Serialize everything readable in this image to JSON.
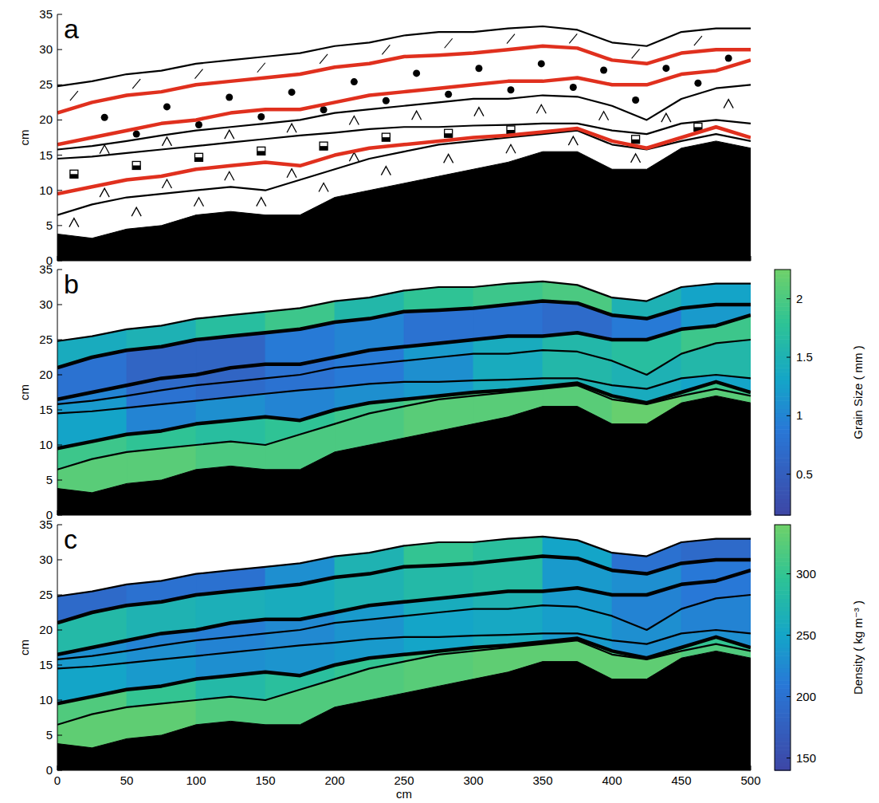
{
  "chart_data": [
    {
      "type": "stratigraphy",
      "title": "a",
      "ylabel": "cm",
      "xlim": [
        0,
        500
      ],
      "xticks": [
        0,
        50,
        100,
        150,
        200,
        250,
        300,
        350,
        400,
        450,
        500
      ],
      "ylim": [
        0,
        35
      ],
      "yticks": [
        0,
        5,
        10,
        15,
        20,
        25,
        30,
        35
      ],
      "tick_labels": "y",
      "x": [
        0,
        25,
        50,
        75,
        100,
        125,
        150,
        175,
        200,
        225,
        250,
        275,
        300,
        325,
        350,
        375,
        400,
        425,
        450,
        475,
        500
      ],
      "series": [
        {
          "type": "area",
          "color": "#000000",
          "values": [
            3.8,
            3.2,
            4.5,
            5,
            6.5,
            7,
            6.5,
            6.5,
            9,
            10,
            11,
            12,
            13,
            14,
            15.5,
            15.5,
            13,
            13,
            16,
            17,
            16
          ]
        },
        {
          "type": "line",
          "color": "#000000",
          "line_style": "thin",
          "values": [
            6.5,
            8,
            9,
            9.5,
            10,
            10.5,
            10,
            11.5,
            13,
            14.5,
            15.5,
            16.5,
            17,
            17.5,
            18,
            18.5,
            16.5,
            15.8,
            17,
            18,
            17
          ]
        },
        {
          "type": "line",
          "color": "#e0301e",
          "line_style": "thick",
          "values": [
            9.5,
            10.5,
            11.5,
            12,
            13,
            13.5,
            14,
            13.5,
            15,
            16,
            16.5,
            17,
            17.5,
            17.8,
            18.3,
            18.8,
            17,
            16,
            17.5,
            19,
            17.5
          ]
        },
        {
          "type": "line",
          "color": "#000000",
          "line_style": "thin",
          "values": [
            14.5,
            14.8,
            15.3,
            15.8,
            16.3,
            16.8,
            17.3,
            17.8,
            18.2,
            18.7,
            19,
            19,
            19.2,
            19.3,
            19.5,
            19.5,
            18.5,
            18,
            19.5,
            20,
            19.5
          ]
        },
        {
          "type": "line",
          "color": "#000000",
          "line_style": "thin",
          "values": [
            15.8,
            16.3,
            17,
            17.8,
            18.5,
            19,
            19.5,
            20,
            21,
            21.5,
            22,
            22.5,
            23,
            23,
            23.5,
            23.3,
            22,
            20,
            23,
            24.5,
            25
          ]
        },
        {
          "type": "line",
          "color": "#e0301e",
          "line_style": "thick",
          "values": [
            16.5,
            17.5,
            18.5,
            19.5,
            20,
            21,
            21.5,
            21.5,
            22.5,
            23.5,
            24,
            24.5,
            25,
            25.5,
            25.5,
            26,
            25,
            25,
            26.5,
            27,
            28.5
          ]
        },
        {
          "type": "line",
          "color": "#e0301e",
          "line_style": "thick",
          "values": [
            21,
            22.5,
            23.5,
            24,
            25,
            25.5,
            26,
            26.5,
            27.5,
            28,
            29,
            29.2,
            29.5,
            30,
            30.5,
            30.2,
            28.5,
            28,
            29.5,
            30,
            30
          ]
        },
        {
          "type": "line",
          "color": "#000000",
          "line_style": "thin",
          "values": [
            24.8,
            25.5,
            26.5,
            27,
            28,
            28.5,
            29,
            29.5,
            30.5,
            31,
            32,
            32.5,
            32.5,
            33,
            33.3,
            32.8,
            31,
            30.5,
            32.5,
            33,
            33
          ]
        }
      ],
      "layers": [
        {
          "marker": "caret"
        },
        {
          "marker": "caret"
        },
        {
          "marker": "square"
        },
        {
          "marker": "caret"
        },
        {
          "marker": "circle"
        },
        {
          "marker": "circle"
        },
        {
          "marker": "slash"
        }
      ]
    },
    {
      "type": "stratigraphy",
      "title": "b",
      "ylabel": "cm",
      "xlim": [
        0,
        500
      ],
      "xticks": [
        0,
        50,
        100,
        150,
        200,
        250,
        300,
        350,
        400,
        450,
        500
      ],
      "ylim": [
        0,
        35
      ],
      "yticks": [
        0,
        5,
        10,
        15,
        20,
        25,
        30,
        35
      ],
      "tick_labels": "y",
      "x": [
        0,
        25,
        50,
        75,
        100,
        125,
        150,
        175,
        200,
        225,
        250,
        275,
        300,
        325,
        350,
        375,
        400,
        425,
        450,
        475,
        500
      ],
      "series": [
        {
          "type": "area",
          "color": "#000000",
          "values": [
            3.8,
            3.2,
            4.5,
            5,
            6.5,
            7,
            6.5,
            6.5,
            9,
            10,
            11,
            12,
            13,
            14,
            15.5,
            15.5,
            13,
            13,
            16,
            17,
            16
          ]
        },
        {
          "type": "line",
          "color": "#000000",
          "line_style": "thin",
          "values": [
            6.5,
            8,
            9,
            9.5,
            10,
            10.5,
            10,
            11.5,
            13,
            14.5,
            15.5,
            16.5,
            17,
            17.5,
            18,
            18.5,
            16.5,
            15.8,
            17,
            18,
            17
          ]
        },
        {
          "type": "line",
          "color": "#000000",
          "line_style": "thick",
          "values": [
            9.5,
            10.5,
            11.5,
            12,
            13,
            13.5,
            14,
            13.5,
            15,
            16,
            16.5,
            17,
            17.5,
            17.8,
            18.3,
            18.8,
            17,
            16,
            17.5,
            19,
            17.5
          ]
        },
        {
          "type": "line",
          "color": "#000000",
          "line_style": "thin",
          "values": [
            14.5,
            14.8,
            15.3,
            15.8,
            16.3,
            16.8,
            17.3,
            17.8,
            18.2,
            18.7,
            19,
            19,
            19.2,
            19.3,
            19.5,
            19.5,
            18.5,
            18,
            19.5,
            20,
            19.5
          ]
        },
        {
          "type": "line",
          "color": "#000000",
          "line_style": "thin",
          "values": [
            15.8,
            16.3,
            17,
            17.8,
            18.5,
            19,
            19.5,
            20,
            21,
            21.5,
            22,
            22.5,
            23,
            23,
            23.5,
            23.3,
            22,
            20,
            23,
            24.5,
            25
          ]
        },
        {
          "type": "line",
          "color": "#000000",
          "line_style": "thick",
          "values": [
            16.5,
            17.5,
            18.5,
            19.5,
            20,
            21,
            21.5,
            21.5,
            22.5,
            23.5,
            24,
            24.5,
            25,
            25.5,
            25.5,
            26,
            25,
            25,
            26.5,
            27,
            28.5
          ]
        },
        {
          "type": "line",
          "color": "#000000",
          "line_style": "thick",
          "values": [
            21,
            22.5,
            23.5,
            24,
            25,
            25.5,
            26,
            26.5,
            27.5,
            28,
            29,
            29.2,
            29.5,
            30,
            30.5,
            30.2,
            28.5,
            28,
            29.5,
            30,
            30
          ]
        },
        {
          "type": "line",
          "color": "#000000",
          "line_style": "thin",
          "values": [
            24.8,
            25.5,
            26.5,
            27,
            28,
            28.5,
            29,
            29.5,
            30.5,
            31,
            32,
            32.5,
            32.5,
            33,
            33.3,
            32.8,
            31,
            30.5,
            32.5,
            33,
            33
          ]
        }
      ],
      "cells": {
        "x_edges": [
          0,
          50,
          100,
          150,
          200,
          250,
          300,
          350,
          400,
          450,
          500
        ],
        "values": [
          [
            2.1,
            2.1,
            2.0,
            2.0,
            2.0,
            2.1,
            2.1,
            2.1,
            2.2,
            2.1
          ],
          [
            1.9,
            1.8,
            1.7,
            1.8,
            1.9,
            2.0,
            2.0,
            2.0,
            1.9,
            1.9
          ],
          [
            1.3,
            1.0,
            1.1,
            1.0,
            1.1,
            1.2,
            1.4,
            1.5,
            1.4,
            1.3
          ],
          [
            1.2,
            0.8,
            0.7,
            0.8,
            0.9,
            1.1,
            1.4,
            1.6,
            1.5,
            1.6
          ],
          [
            1.0,
            0.7,
            0.6,
            0.8,
            0.9,
            1.2,
            1.4,
            1.6,
            1.7,
            1.9
          ],
          [
            0.8,
            0.6,
            0.6,
            0.9,
            1.0,
            0.8,
            0.8,
            0.7,
            0.9,
            1.2
          ],
          [
            1.4,
            1.5,
            1.7,
            1.9,
            1.6,
            1.8,
            1.9,
            2.0,
            1.5,
            1.3
          ]
        ]
      },
      "colorbar": {
        "label": "Grain Size ( mm )",
        "lim": [
          0.15,
          2.25
        ],
        "ticks": [
          0.5,
          1,
          1.5,
          2
        ]
      }
    },
    {
      "type": "stratigraphy",
      "title": "c",
      "ylabel": "cm",
      "xlabel": "cm",
      "xlim": [
        0,
        500
      ],
      "xticks": [
        0,
        50,
        100,
        150,
        200,
        250,
        300,
        350,
        400,
        450,
        500
      ],
      "ylim": [
        0,
        35
      ],
      "yticks": [
        0,
        5,
        10,
        15,
        20,
        25,
        30,
        35
      ],
      "tick_labels": true,
      "x": [
        0,
        25,
        50,
        75,
        100,
        125,
        150,
        175,
        200,
        225,
        250,
        275,
        300,
        325,
        350,
        375,
        400,
        425,
        450,
        475,
        500
      ],
      "series": [
        {
          "type": "area",
          "color": "#000000",
          "values": [
            3.8,
            3.2,
            4.5,
            5,
            6.5,
            7,
            6.5,
            6.5,
            9,
            10,
            11,
            12,
            13,
            14,
            15.5,
            15.5,
            13,
            13,
            16,
            17,
            16
          ]
        },
        {
          "type": "line",
          "color": "#000000",
          "line_style": "thin",
          "values": [
            6.5,
            8,
            9,
            9.5,
            10,
            10.5,
            10,
            11.5,
            13,
            14.5,
            15.5,
            16.5,
            17,
            17.5,
            18,
            18.5,
            16.5,
            15.8,
            17,
            18,
            17
          ]
        },
        {
          "type": "line",
          "color": "#000000",
          "line_style": "thick",
          "values": [
            9.5,
            10.5,
            11.5,
            12,
            13,
            13.5,
            14,
            13.5,
            15,
            16,
            16.5,
            17,
            17.5,
            17.8,
            18.3,
            18.8,
            17,
            16,
            17.5,
            19,
            17.5
          ]
        },
        {
          "type": "line",
          "color": "#000000",
          "line_style": "thin",
          "values": [
            14.5,
            14.8,
            15.3,
            15.8,
            16.3,
            16.8,
            17.3,
            17.8,
            18.2,
            18.7,
            19,
            19,
            19.2,
            19.3,
            19.5,
            19.5,
            18.5,
            18,
            19.5,
            20,
            19.5
          ]
        },
        {
          "type": "line",
          "color": "#000000",
          "line_style": "thin",
          "values": [
            15.8,
            16.3,
            17,
            17.8,
            18.5,
            19,
            19.5,
            20,
            21,
            21.5,
            22,
            22.5,
            23,
            23,
            23.5,
            23.3,
            22,
            20,
            23,
            24.5,
            25
          ]
        },
        {
          "type": "line",
          "color": "#000000",
          "line_style": "thick",
          "values": [
            16.5,
            17.5,
            18.5,
            19.5,
            20,
            21,
            21.5,
            21.5,
            22.5,
            23.5,
            24,
            24.5,
            25,
            25.5,
            25.5,
            26,
            25,
            25,
            26.5,
            27,
            28.5
          ]
        },
        {
          "type": "line",
          "color": "#000000",
          "line_style": "thick",
          "values": [
            21,
            22.5,
            23.5,
            24,
            25,
            25.5,
            26,
            26.5,
            27.5,
            28,
            29,
            29.2,
            29.5,
            30,
            30.5,
            30.2,
            28.5,
            28,
            29.5,
            30,
            30
          ]
        },
        {
          "type": "line",
          "color": "#000000",
          "line_style": "thin",
          "values": [
            24.8,
            25.5,
            26.5,
            27,
            28,
            28.5,
            29,
            29.5,
            30.5,
            31,
            32,
            32.5,
            32.5,
            33,
            33.3,
            32.8,
            31,
            30.5,
            32.5,
            33,
            33
          ]
        }
      ],
      "cells": {
        "x_edges": [
          0,
          50,
          100,
          150,
          200,
          250,
          300,
          350,
          400,
          450,
          500
        ],
        "values": [
          [
            330,
            330,
            320,
            320,
            320,
            325,
            330,
            330,
            330,
            320
          ],
          [
            320,
            300,
            280,
            290,
            300,
            310,
            320,
            320,
            310,
            300
          ],
          [
            250,
            240,
            230,
            235,
            240,
            250,
            260,
            240,
            230,
            230
          ],
          [
            240,
            230,
            220,
            225,
            235,
            250,
            255,
            245,
            230,
            220
          ],
          [
            230,
            220,
            215,
            225,
            240,
            260,
            270,
            240,
            220,
            210
          ],
          [
            280,
            270,
            265,
            260,
            270,
            280,
            285,
            240,
            230,
            210
          ],
          [
            190,
            200,
            200,
            230,
            270,
            300,
            290,
            250,
            200,
            190
          ]
        ]
      },
      "colorbar": {
        "label": "Density ( kg m⁻³ )",
        "lim": [
          140,
          340
        ],
        "ticks": [
          150,
          200,
          250,
          300
        ]
      }
    }
  ]
}
